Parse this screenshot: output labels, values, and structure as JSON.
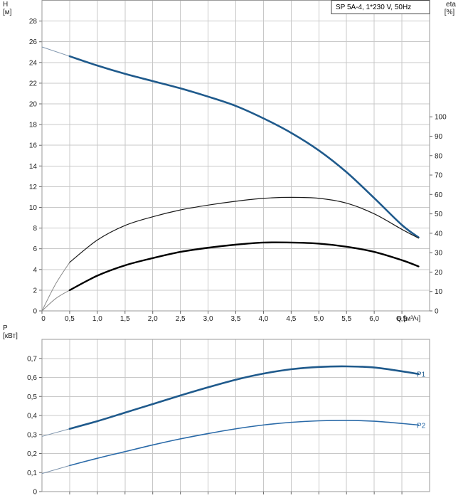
{
  "legend": {
    "text": "SP 5A-4, 1*230 V, 50Hz"
  },
  "colors": {
    "main_blue": "#1f5a8c",
    "grid": "#c8c8c8",
    "frame": "#9a9a9a",
    "black": "#000000",
    "label_blue": "#2a6aa8"
  },
  "chart_data": [
    {
      "type": "line",
      "title": "",
      "x": {
        "unit": "Q [м³/ч]",
        "min": 0,
        "max": 7.0,
        "ticks": [
          "0",
          "0,5",
          "1,0",
          "1,5",
          "2,0",
          "2,5",
          "3,0",
          "3,5",
          "4,0",
          "4,5",
          "5,0",
          "5,5",
          "6,0",
          "6,5"
        ]
      },
      "y_left": {
        "label": "H",
        "unit": "[м]",
        "min": 0,
        "max": 30,
        "ticks": [
          "0",
          "2",
          "4",
          "6",
          "8",
          "10",
          "12",
          "14",
          "16",
          "18",
          "20",
          "22",
          "24",
          "26",
          "28"
        ]
      },
      "y_right": {
        "label": "eta",
        "unit": "[%]",
        "min": 0,
        "max": 160,
        "ticks": [
          "0",
          "10",
          "20",
          "30",
          "40",
          "50",
          "60",
          "70",
          "80",
          "90",
          "100"
        ]
      },
      "grid": true,
      "series": [
        {
          "name": "",
          "axis": "left",
          "style": "thin-extension",
          "color": "#7f95ad",
          "x": [
            0,
            0.5
          ],
          "y": [
            25.5,
            24.6
          ]
        },
        {
          "name": "",
          "axis": "left",
          "style": "main",
          "color": "#1f5a8c",
          "x": [
            0.5,
            1.0,
            1.5,
            2.0,
            2.5,
            3.0,
            3.5,
            4.0,
            4.5,
            5.0,
            5.5,
            6.0,
            6.5,
            6.8
          ],
          "y": [
            24.6,
            23.7,
            22.9,
            22.2,
            21.5,
            20.7,
            19.8,
            18.6,
            17.2,
            15.5,
            13.4,
            10.9,
            8.3,
            7.1
          ]
        },
        {
          "name": "",
          "axis": "right",
          "style": "thin-extension",
          "color": "#8a8a8a",
          "x": [
            0,
            0.25,
            0.5
          ],
          "y": [
            0,
            14,
            25
          ]
        },
        {
          "name": "",
          "axis": "right",
          "style": "thin-black",
          "color": "#1a1a1a",
          "x": [
            0.5,
            1.0,
            1.5,
            2.0,
            2.5,
            3.0,
            3.5,
            4.0,
            4.5,
            5.0,
            5.5,
            6.0,
            6.5,
            6.8
          ],
          "y": [
            25,
            36.5,
            44,
            48.5,
            52,
            54.5,
            56.5,
            58,
            58.5,
            58,
            55.5,
            50,
            42,
            37.5
          ]
        },
        {
          "name": "",
          "axis": "left",
          "style": "thin-extension",
          "color": "#8a8a8a",
          "x": [
            0,
            0.25,
            0.5
          ],
          "y": [
            0,
            1.2,
            2.0
          ]
        },
        {
          "name": "",
          "axis": "left",
          "style": "thick-black",
          "color": "#000000",
          "x": [
            0.5,
            1.0,
            1.5,
            2.0,
            2.5,
            3.0,
            3.5,
            4.0,
            4.5,
            5.0,
            5.5,
            6.0,
            6.5,
            6.8
          ],
          "y": [
            2.0,
            3.4,
            4.4,
            5.1,
            5.7,
            6.1,
            6.4,
            6.6,
            6.6,
            6.5,
            6.2,
            5.7,
            4.9,
            4.3
          ]
        }
      ]
    },
    {
      "type": "line",
      "title": "",
      "x": {
        "unit": "",
        "min": 0,
        "max": 7.0,
        "ticks": []
      },
      "y_left": {
        "label": "P",
        "unit": "[кВт]",
        "min": 0,
        "max": 0.8,
        "ticks": [
          "0",
          "0,1",
          "0,2",
          "0,3",
          "0,4",
          "0,5",
          "0,6",
          "0,7"
        ]
      },
      "grid": true,
      "series": [
        {
          "name": "",
          "axis": "left",
          "style": "thin-extension",
          "color": "#7f95ad",
          "x": [
            0,
            0.5
          ],
          "y": [
            0.29,
            0.33
          ]
        },
        {
          "name": "P1",
          "axis": "left",
          "style": "main",
          "color": "#1f5a8c",
          "x": [
            0.5,
            1.0,
            1.5,
            2.0,
            2.5,
            3.0,
            3.5,
            4.0,
            4.5,
            5.0,
            5.5,
            6.0,
            6.5,
            6.8
          ],
          "y": [
            0.33,
            0.37,
            0.415,
            0.46,
            0.505,
            0.548,
            0.588,
            0.62,
            0.643,
            0.655,
            0.658,
            0.652,
            0.632,
            0.618
          ]
        },
        {
          "name": "",
          "axis": "left",
          "style": "thin-extension",
          "color": "#7f95ad",
          "x": [
            0,
            0.5
          ],
          "y": [
            0.095,
            0.137
          ]
        },
        {
          "name": "P2",
          "axis": "left",
          "style": "thin-blue",
          "color": "#2a6aa8",
          "x": [
            0.5,
            1.0,
            1.5,
            2.0,
            2.5,
            3.0,
            3.5,
            4.0,
            4.5,
            5.0,
            5.5,
            6.0,
            6.5,
            6.8
          ],
          "y": [
            0.137,
            0.175,
            0.21,
            0.245,
            0.277,
            0.305,
            0.33,
            0.35,
            0.364,
            0.372,
            0.374,
            0.37,
            0.358,
            0.35
          ]
        }
      ]
    }
  ]
}
